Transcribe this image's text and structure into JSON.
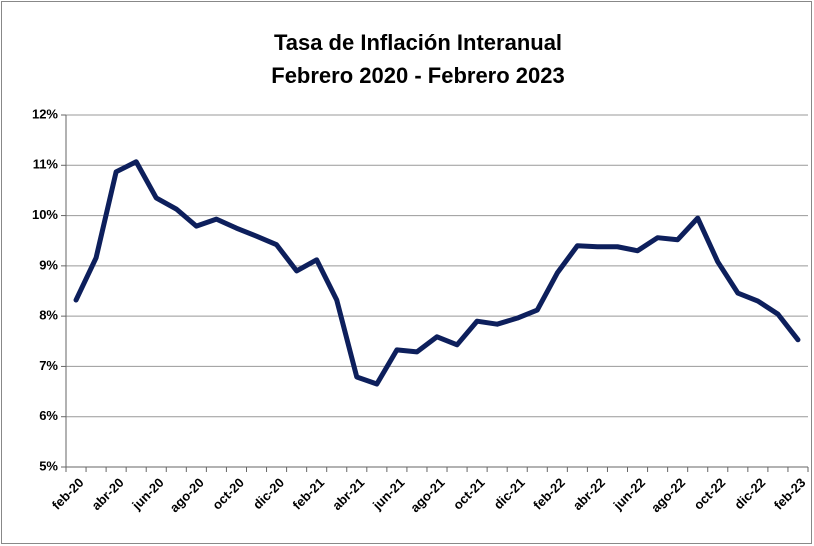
{
  "chart_data": {
    "type": "line",
    "title": "Tasa de Inflación Interanual",
    "subtitle": "Febrero 2020 - Febrero 2023",
    "categories": [
      "feb-20",
      null,
      "abr-20",
      null,
      "jun-20",
      null,
      "ago-20",
      null,
      "oct-20",
      null,
      "dic-20",
      null,
      "feb-21",
      null,
      "abr-21",
      null,
      "jun-21",
      null,
      "ago-21",
      null,
      "oct-21",
      null,
      "dic-21",
      null,
      "feb-22",
      null,
      "abr-22",
      null,
      "jun-22",
      null,
      "ago-22",
      null,
      "oct-22",
      null,
      "dic-22",
      null,
      "feb-23"
    ],
    "series": [
      {
        "color": "#0d1f5c",
        "values": [
          8.32,
          9.16,
          10.87,
          11.07,
          10.35,
          10.13,
          9.79,
          9.93,
          9.75,
          9.59,
          9.42,
          8.9,
          9.12,
          8.32,
          6.79,
          6.65,
          7.33,
          7.29,
          7.59,
          7.43,
          7.9,
          7.84,
          7.96,
          8.12,
          8.86,
          9.4,
          9.38,
          9.38,
          9.3,
          9.56,
          9.52,
          9.95,
          9.08,
          8.46,
          8.3,
          8.04,
          7.53
        ]
      }
    ],
    "ylim": [
      5,
      12
    ],
    "yticks": [
      {
        "value": 5,
        "label": "5%"
      },
      {
        "value": 6,
        "label": "6%"
      },
      {
        "value": 7,
        "label": "7%"
      },
      {
        "value": 8,
        "label": "8%"
      },
      {
        "value": 9,
        "label": "9%"
      },
      {
        "value": 10,
        "label": "10%"
      },
      {
        "value": 11,
        "label": "11%"
      },
      {
        "value": 12,
        "label": "12%"
      }
    ],
    "grid": true
  }
}
